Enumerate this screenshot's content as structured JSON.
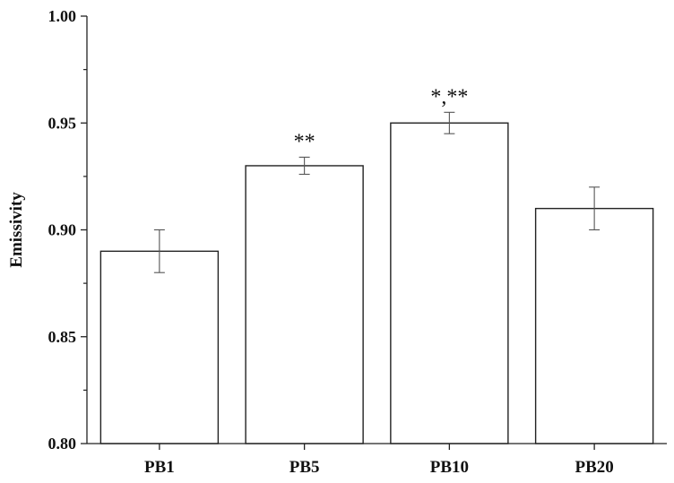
{
  "chart_data": {
    "type": "bar",
    "title": "",
    "xlabel": "",
    "ylabel": "Emissivity",
    "ylim": [
      0.8,
      1.0
    ],
    "yticks": [
      "0.80",
      "0.85",
      "0.90",
      "0.95",
      "1.00"
    ],
    "categories": [
      "PB1",
      "PB5",
      "PB10",
      "PB20"
    ],
    "values": [
      0.89,
      0.93,
      0.95,
      0.91
    ],
    "errors": [
      0.01,
      0.004,
      0.005,
      0.01
    ],
    "annotations": [
      "",
      "**",
      "*,**",
      ""
    ],
    "grid": false,
    "legend": "none",
    "bar_fill": "#ffffff",
    "bar_stroke": "#222222"
  }
}
